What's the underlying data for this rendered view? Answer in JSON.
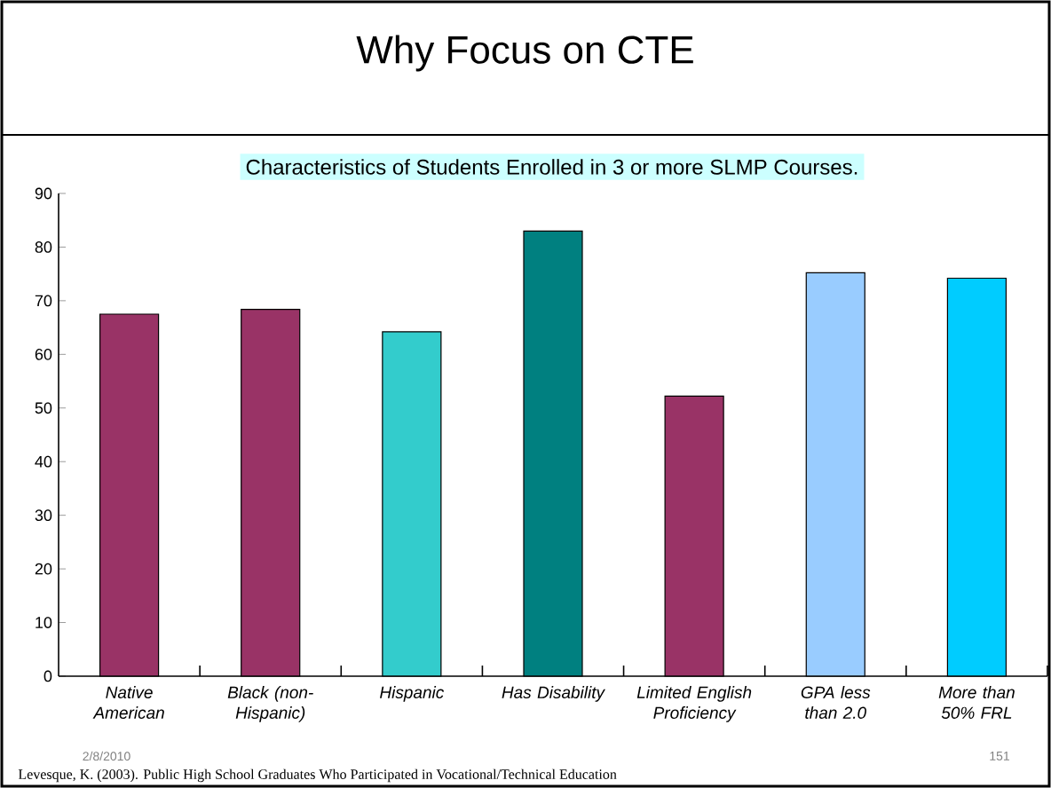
{
  "chart_data": {
    "type": "bar",
    "title": "Why Focus on CTE",
    "subtitle": "Characteristics of Students Enrolled in 3 or more SLMP Courses.",
    "categories": [
      "Native American",
      "Black (non-Hispanic)",
      "Hispanic",
      "Has Disability",
      "Limited English Proficiency",
      "GPA less than 2.0",
      "More than 50% FRL"
    ],
    "values": [
      67.5,
      68.4,
      64.2,
      83.0,
      52.2,
      75.2,
      74.2
    ],
    "colors": [
      "#993366",
      "#993366",
      "#33cccc",
      "#008080",
      "#993366",
      "#99ccff",
      "#00ccff"
    ],
    "ylim": [
      0,
      90
    ],
    "yticks": [
      0,
      10,
      20,
      30,
      40,
      50,
      60,
      70,
      80,
      90
    ],
    "grid": false,
    "annotations": [
      "2/8/2010",
      "151",
      "Levesque, K. (2003). Public High School Graduates Who Participated in Vocational/Technical Education"
    ]
  }
}
